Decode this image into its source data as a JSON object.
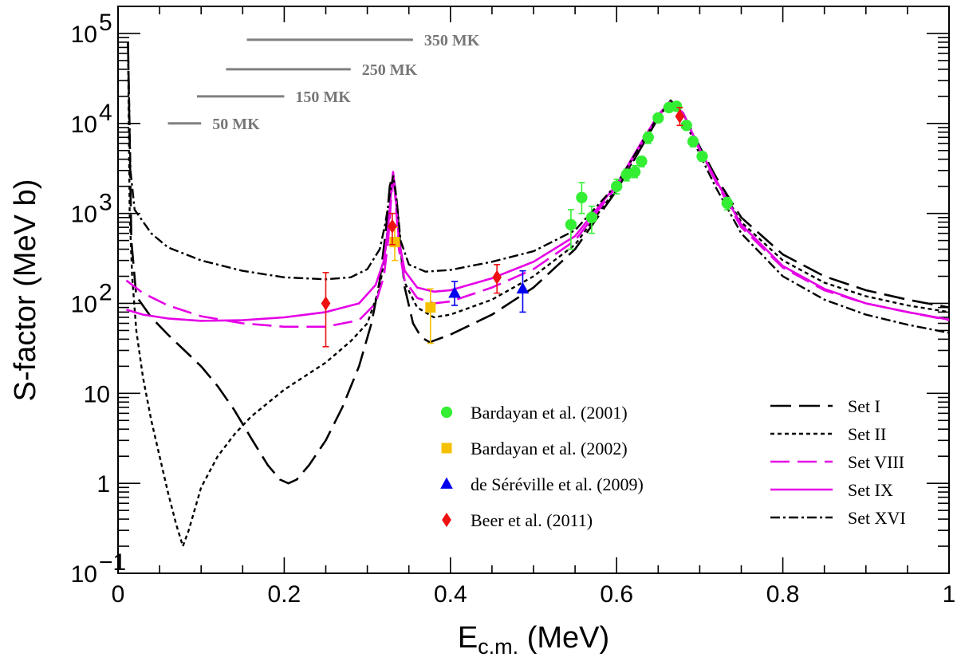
{
  "chart_data": {
    "type": "line",
    "title": "",
    "xlabel": "E",
    "xlabel_sub": "c.m.",
    "xlabel_unit": " (MeV)",
    "ylabel": "S-factor (MeV b)",
    "xlim": [
      0,
      1
    ],
    "ylim": [
      0.1,
      200000
    ],
    "yscale": "log",
    "x_ticks": [
      {
        "v": 0,
        "label": "0"
      },
      {
        "v": 0.2,
        "label": "0.2"
      },
      {
        "v": 0.4,
        "label": "0.4"
      },
      {
        "v": 0.6,
        "label": "0.6"
      },
      {
        "v": 0.8,
        "label": "0.8"
      },
      {
        "v": 1,
        "label": "1"
      }
    ],
    "y_ticks": [
      {
        "v": 0.1,
        "base": "10",
        "exp": "−1"
      },
      {
        "v": 1,
        "base": "1",
        "exp": ""
      },
      {
        "v": 10,
        "base": "10",
        "exp": ""
      },
      {
        "v": 100,
        "base": "10",
        "exp": "2"
      },
      {
        "v": 1000,
        "base": "10",
        "exp": "3"
      },
      {
        "v": 10000,
        "base": "10",
        "exp": "4"
      },
      {
        "v": 100000,
        "base": "10",
        "exp": "5"
      }
    ],
    "temperature_ranges": [
      {
        "label": "50 MK",
        "x0": 0.06,
        "x1": 0.1,
        "y": 10000
      },
      {
        "label": "150 MK",
        "x0": 0.095,
        "x1": 0.2,
        "y": 20000
      },
      {
        "label": "250 MK",
        "x0": 0.13,
        "x1": 0.28,
        "y": 40000
      },
      {
        "label": "350 MK",
        "x0": 0.155,
        "x1": 0.355,
        "y": 85000
      }
    ],
    "series": [
      {
        "name": "Set I",
        "color": "#000000",
        "dash": "26,10",
        "width": 2.6,
        "points": [
          [
            0.012,
            80000
          ],
          [
            0.016,
            500
          ],
          [
            0.022,
            120
          ],
          [
            0.04,
            70
          ],
          [
            0.06,
            45
          ],
          [
            0.08,
            30
          ],
          [
            0.1,
            20
          ],
          [
            0.12,
            12
          ],
          [
            0.14,
            6.5
          ],
          [
            0.16,
            3.2
          ],
          [
            0.18,
            1.6
          ],
          [
            0.195,
            1.1
          ],
          [
            0.205,
            1.0
          ],
          [
            0.215,
            1.1
          ],
          [
            0.23,
            1.6
          ],
          [
            0.25,
            3
          ],
          [
            0.27,
            7
          ],
          [
            0.29,
            20
          ],
          [
            0.305,
            60
          ],
          [
            0.315,
            180
          ],
          [
            0.322,
            600
          ],
          [
            0.327,
            2000
          ],
          [
            0.331,
            2800
          ],
          [
            0.335,
            1500
          ],
          [
            0.34,
            400
          ],
          [
            0.345,
            150
          ],
          [
            0.355,
            60
          ],
          [
            0.365,
            42
          ],
          [
            0.375,
            37
          ],
          [
            0.4,
            45
          ],
          [
            0.45,
            75
          ],
          [
            0.5,
            150
          ],
          [
            0.55,
            400
          ],
          [
            0.6,
            1800
          ],
          [
            0.63,
            5500
          ],
          [
            0.65,
            11500
          ],
          [
            0.665,
            18000
          ],
          [
            0.68,
            13000
          ],
          [
            0.7,
            5500
          ],
          [
            0.72,
            2500
          ],
          [
            0.75,
            900
          ],
          [
            0.8,
            350
          ],
          [
            0.85,
            200
          ],
          [
            0.9,
            140
          ],
          [
            0.95,
            110
          ],
          [
            1.0,
            90
          ]
        ]
      },
      {
        "name": "Set II",
        "color": "#000000",
        "dash": "5,4",
        "width": 2.4,
        "points": [
          [
            0.012,
            80000
          ],
          [
            0.014,
            1000
          ],
          [
            0.017,
            200
          ],
          [
            0.022,
            50
          ],
          [
            0.03,
            15
          ],
          [
            0.04,
            5
          ],
          [
            0.05,
            2
          ],
          [
            0.06,
            0.8
          ],
          [
            0.07,
            0.35
          ],
          [
            0.078,
            0.2
          ],
          [
            0.085,
            0.3
          ],
          [
            0.1,
            0.9
          ],
          [
            0.12,
            2
          ],
          [
            0.14,
            3.5
          ],
          [
            0.16,
            5.5
          ],
          [
            0.2,
            11
          ],
          [
            0.25,
            22
          ],
          [
            0.28,
            38
          ],
          [
            0.3,
            60
          ],
          [
            0.315,
            150
          ],
          [
            0.322,
            400
          ],
          [
            0.327,
            1200
          ],
          [
            0.331,
            2700
          ],
          [
            0.335,
            1300
          ],
          [
            0.34,
            400
          ],
          [
            0.345,
            170
          ],
          [
            0.36,
            90
          ],
          [
            0.38,
            70
          ],
          [
            0.4,
            75
          ],
          [
            0.45,
            110
          ],
          [
            0.5,
            200
          ],
          [
            0.55,
            450
          ],
          [
            0.6,
            1900
          ],
          [
            0.63,
            5500
          ],
          [
            0.65,
            11500
          ],
          [
            0.665,
            18000
          ],
          [
            0.68,
            13000
          ],
          [
            0.7,
            5000
          ],
          [
            0.72,
            2300
          ],
          [
            0.75,
            800
          ],
          [
            0.8,
            300
          ],
          [
            0.85,
            170
          ],
          [
            0.9,
            120
          ],
          [
            0.95,
            95
          ],
          [
            1.0,
            80
          ]
        ]
      },
      {
        "name": "Set VIII",
        "color": "#e600e6",
        "dash": "24,10",
        "width": 2.6,
        "points": [
          [
            0.01,
            180
          ],
          [
            0.03,
            130
          ],
          [
            0.06,
            95
          ],
          [
            0.1,
            72
          ],
          [
            0.15,
            60
          ],
          [
            0.2,
            55
          ],
          [
            0.25,
            55
          ],
          [
            0.29,
            65
          ],
          [
            0.31,
            100
          ],
          [
            0.32,
            200
          ],
          [
            0.325,
            500
          ],
          [
            0.328,
            1200
          ],
          [
            0.331,
            2800
          ],
          [
            0.334,
            1400
          ],
          [
            0.338,
            400
          ],
          [
            0.345,
            180
          ],
          [
            0.36,
            115
          ],
          [
            0.38,
            100
          ],
          [
            0.4,
            105
          ],
          [
            0.45,
            150
          ],
          [
            0.5,
            240
          ],
          [
            0.55,
            500
          ],
          [
            0.6,
            2000
          ],
          [
            0.63,
            6000
          ],
          [
            0.65,
            12000
          ],
          [
            0.665,
            17500
          ],
          [
            0.68,
            13000
          ],
          [
            0.7,
            5000
          ],
          [
            0.72,
            2200
          ],
          [
            0.75,
            700
          ],
          [
            0.8,
            250
          ],
          [
            0.85,
            140
          ],
          [
            0.9,
            100
          ],
          [
            0.95,
            80
          ],
          [
            1.0,
            65
          ]
        ]
      },
      {
        "name": "Set IX",
        "color": "#e600e6",
        "dash": "",
        "width": 2.6,
        "points": [
          [
            0.01,
            85
          ],
          [
            0.03,
            75
          ],
          [
            0.06,
            68
          ],
          [
            0.1,
            64
          ],
          [
            0.15,
            65
          ],
          [
            0.2,
            70
          ],
          [
            0.25,
            80
          ],
          [
            0.29,
            100
          ],
          [
            0.31,
            160
          ],
          [
            0.32,
            300
          ],
          [
            0.325,
            700
          ],
          [
            0.328,
            1500
          ],
          [
            0.331,
            2900
          ],
          [
            0.334,
            1600
          ],
          [
            0.338,
            500
          ],
          [
            0.345,
            230
          ],
          [
            0.36,
            150
          ],
          [
            0.38,
            135
          ],
          [
            0.4,
            140
          ],
          [
            0.45,
            190
          ],
          [
            0.5,
            290
          ],
          [
            0.55,
            560
          ],
          [
            0.6,
            2100
          ],
          [
            0.63,
            6200
          ],
          [
            0.65,
            12500
          ],
          [
            0.665,
            17500
          ],
          [
            0.68,
            13000
          ],
          [
            0.7,
            5200
          ],
          [
            0.72,
            2300
          ],
          [
            0.75,
            750
          ],
          [
            0.8,
            260
          ],
          [
            0.85,
            145
          ],
          [
            0.9,
            100
          ],
          [
            0.95,
            80
          ],
          [
            1.0,
            66
          ]
        ]
      },
      {
        "name": "Set XVI",
        "color": "#000000",
        "dash": "12,4,3,4",
        "width": 2.4,
        "points": [
          [
            0.012,
            80000
          ],
          [
            0.015,
            3000
          ],
          [
            0.02,
            1100
          ],
          [
            0.04,
            600
          ],
          [
            0.06,
            420
          ],
          [
            0.1,
            300
          ],
          [
            0.15,
            230
          ],
          [
            0.2,
            195
          ],
          [
            0.25,
            185
          ],
          [
            0.28,
            195
          ],
          [
            0.3,
            240
          ],
          [
            0.315,
            400
          ],
          [
            0.322,
            800
          ],
          [
            0.327,
            1600
          ],
          [
            0.331,
            2600
          ],
          [
            0.335,
            1500
          ],
          [
            0.34,
            500
          ],
          [
            0.35,
            270
          ],
          [
            0.37,
            225
          ],
          [
            0.4,
            235
          ],
          [
            0.45,
            290
          ],
          [
            0.5,
            380
          ],
          [
            0.55,
            650
          ],
          [
            0.6,
            2100
          ],
          [
            0.63,
            6000
          ],
          [
            0.65,
            12000
          ],
          [
            0.665,
            17500
          ],
          [
            0.68,
            12000
          ],
          [
            0.7,
            4500
          ],
          [
            0.72,
            1900
          ],
          [
            0.75,
            600
          ],
          [
            0.8,
            200
          ],
          [
            0.85,
            110
          ],
          [
            0.9,
            75
          ],
          [
            0.95,
            58
          ],
          [
            1.0,
            47
          ]
        ]
      }
    ],
    "data_sets": [
      {
        "name": "Bardayan et al. (2001)",
        "color": "#33ee33",
        "marker": "circle",
        "points": [
          [
            0.545,
            750,
            400,
            1100
          ],
          [
            0.558,
            1500,
            1000,
            2200
          ],
          [
            0.57,
            900,
            600,
            1200
          ],
          [
            0.6,
            2000,
            1650,
            2400
          ],
          [
            0.612,
            2700,
            2300,
            3100
          ],
          [
            0.622,
            2900,
            2500,
            3400
          ],
          [
            0.63,
            3800,
            3300,
            4300
          ],
          [
            0.638,
            7000,
            6000,
            8000
          ],
          [
            0.65,
            11500,
            10500,
            12500
          ],
          [
            0.663,
            15000,
            14000,
            16000
          ],
          [
            0.672,
            15500,
            14500,
            16500
          ],
          [
            0.684,
            9500,
            8500,
            10500
          ],
          [
            0.692,
            6300,
            5500,
            7100
          ],
          [
            0.703,
            4300,
            3800,
            4800
          ],
          [
            0.733,
            1300,
            1100,
            1500
          ]
        ]
      },
      {
        "name": "Bardayan et al. (2002)",
        "color": "#f5c000",
        "marker": "square",
        "points": [
          [
            0.333,
            480,
            300,
            700
          ],
          [
            0.376,
            90,
            36,
            145
          ]
        ]
      },
      {
        "name": "de Séréville et al. (2009)",
        "color": "#0000ee",
        "marker": "triangle",
        "points": [
          [
            0.405,
            130,
            95,
            175
          ],
          [
            0.487,
            145,
            80,
            230
          ]
        ]
      },
      {
        "name": "Beer et al. (2011)",
        "color": "#ee1111",
        "marker": "diamond",
        "points": [
          [
            0.25,
            100,
            33,
            220
          ],
          [
            0.33,
            720,
            450,
            1000
          ],
          [
            0.456,
            195,
            130,
            270
          ],
          [
            0.676,
            12000,
            9500,
            15000
          ]
        ]
      }
    ],
    "legend": {
      "data_placement": "lower-center",
      "model_placement": "lower-right"
    }
  }
}
